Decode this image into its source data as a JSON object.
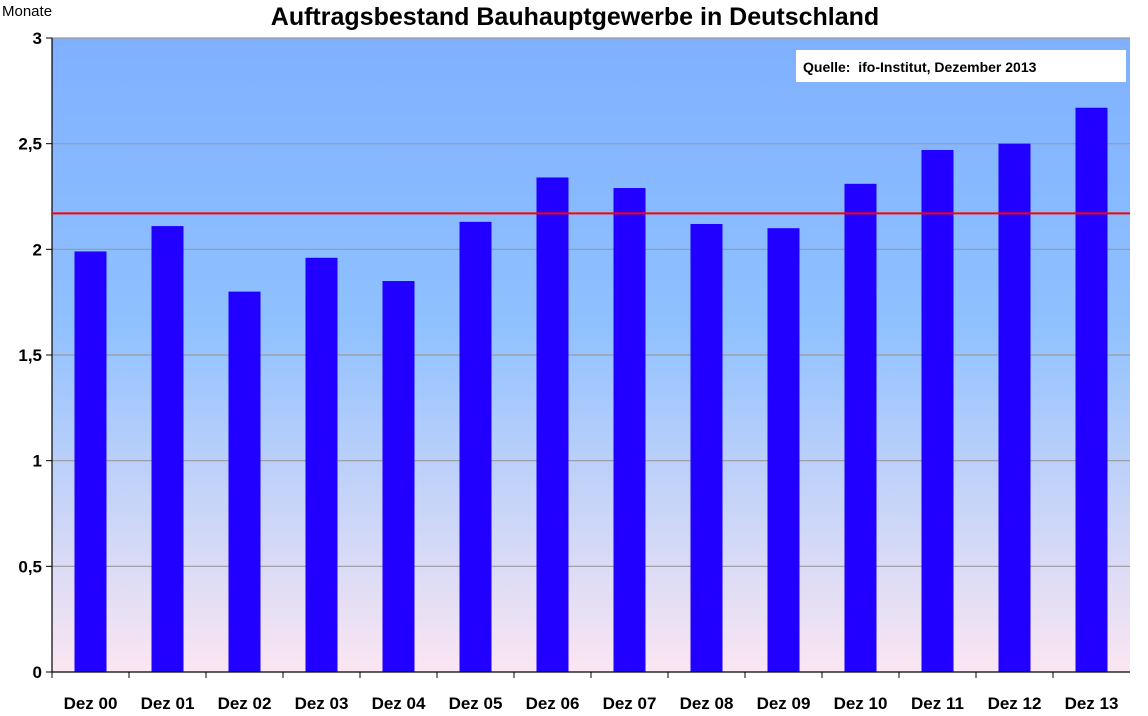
{
  "colors": {
    "bar": "#2200ff",
    "reference_line": "#ff0000",
    "plot_bg_top": "#7fb0ff",
    "plot_bg_mid": "#8fc1ff",
    "plot_bg_bottom": "#fbe6f2",
    "grid": "#9a9a9a"
  },
  "chart_data": {
    "type": "bar",
    "title": "Auftragsbestand Bauhauptgewerbe in Deutschland",
    "ylabel": "Monate",
    "xlabel": "",
    "source_note": "Quelle:  ifo-Institut, Dezember 2013",
    "ylim": [
      0,
      3
    ],
    "yticks": [
      0,
      0.5,
      1,
      1.5,
      2,
      2.5,
      3
    ],
    "ytick_labels": [
      "0",
      "0,5",
      "1",
      "1,5",
      "2",
      "2,5",
      "3"
    ],
    "grid": true,
    "categories": [
      "Dez 00",
      "Dez 01",
      "Dez 02",
      "Dez 03",
      "Dez 04",
      "Dez 05",
      "Dez 06",
      "Dez 07",
      "Dez 08",
      "Dez 09",
      "Dez 10",
      "Dez 11",
      "Dez 12",
      "Dez 13"
    ],
    "values": [
      1.99,
      2.11,
      1.8,
      1.96,
      1.85,
      2.13,
      2.34,
      2.29,
      2.12,
      2.1,
      2.31,
      2.47,
      2.5,
      2.67
    ],
    "reference_line": 2.17
  }
}
